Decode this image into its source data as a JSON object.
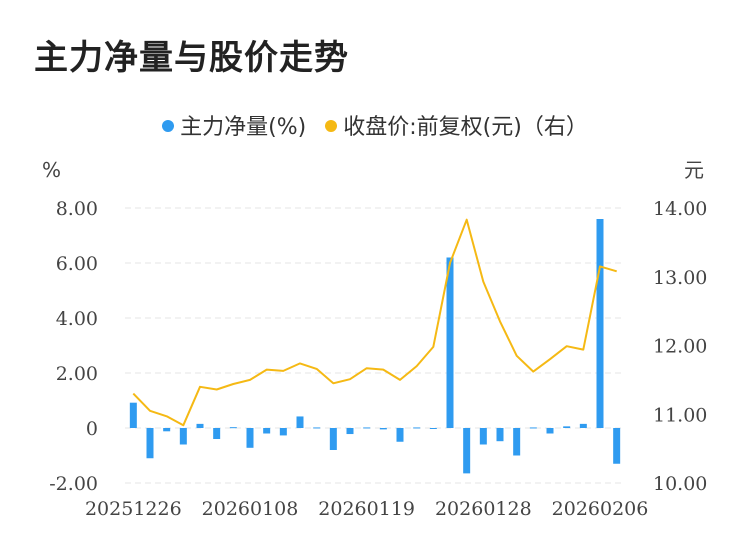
{
  "colors": {
    "bar": "#2f9bf0",
    "line": "#f5b914",
    "grid": "#e6e6e6",
    "text": "#444444"
  },
  "chart_data": {
    "type": "bar+line",
    "title": "主力净量与股价走势",
    "legend": [
      {
        "name": "主力净量(%)",
        "color": "#2f9bf0"
      },
      {
        "name": "收盘价:前复权(元)（右）",
        "color": "#f5b914"
      }
    ],
    "legend_position": "top-center",
    "y_left": {
      "label": "%",
      "ylim": [
        -2,
        8
      ],
      "ticks": [
        "8.00",
        "6.00",
        "4.00",
        "2.00",
        "0",
        "-2.00"
      ],
      "tick_values": [
        8,
        6,
        4,
        2,
        0,
        -2
      ]
    },
    "y_right": {
      "label": "元",
      "ylim": [
        10,
        14
      ],
      "ticks": [
        "14.00",
        "13.00",
        "12.00",
        "11.00",
        "10.00"
      ],
      "tick_values": [
        14,
        13,
        12,
        11,
        10
      ]
    },
    "x_tick_labels": [
      "20251226",
      "20260108",
      "20260119",
      "20260128",
      "20260206"
    ],
    "x_tick_indices": [
      0,
      7,
      14,
      21,
      28
    ],
    "grid": true,
    "series": [
      {
        "name": "主力净量(%)",
        "type": "bar",
        "axis": "left",
        "values": [
          0.92,
          -1.1,
          -0.12,
          -0.6,
          0.15,
          -0.4,
          0.03,
          -0.72,
          -0.2,
          -0.27,
          0.42,
          0.02,
          -0.8,
          -0.22,
          0.02,
          -0.05,
          -0.5,
          0.02,
          -0.03,
          6.2,
          -1.65,
          -0.6,
          -0.48,
          -1.0,
          0.02,
          -0.2,
          0.06,
          0.15,
          7.6,
          -1.3
        ]
      },
      {
        "name": "收盘价:前复权(元)（右）",
        "type": "line",
        "axis": "right",
        "values": [
          11.3,
          11.05,
          10.97,
          10.84,
          11.4,
          11.36,
          11.44,
          11.5,
          11.65,
          11.63,
          11.74,
          11.66,
          11.45,
          11.51,
          11.67,
          11.65,
          11.5,
          11.7,
          11.98,
          13.2,
          13.83,
          12.93,
          12.35,
          11.85,
          11.62,
          11.8,
          11.99,
          11.94,
          13.15,
          13.08
        ]
      }
    ]
  }
}
